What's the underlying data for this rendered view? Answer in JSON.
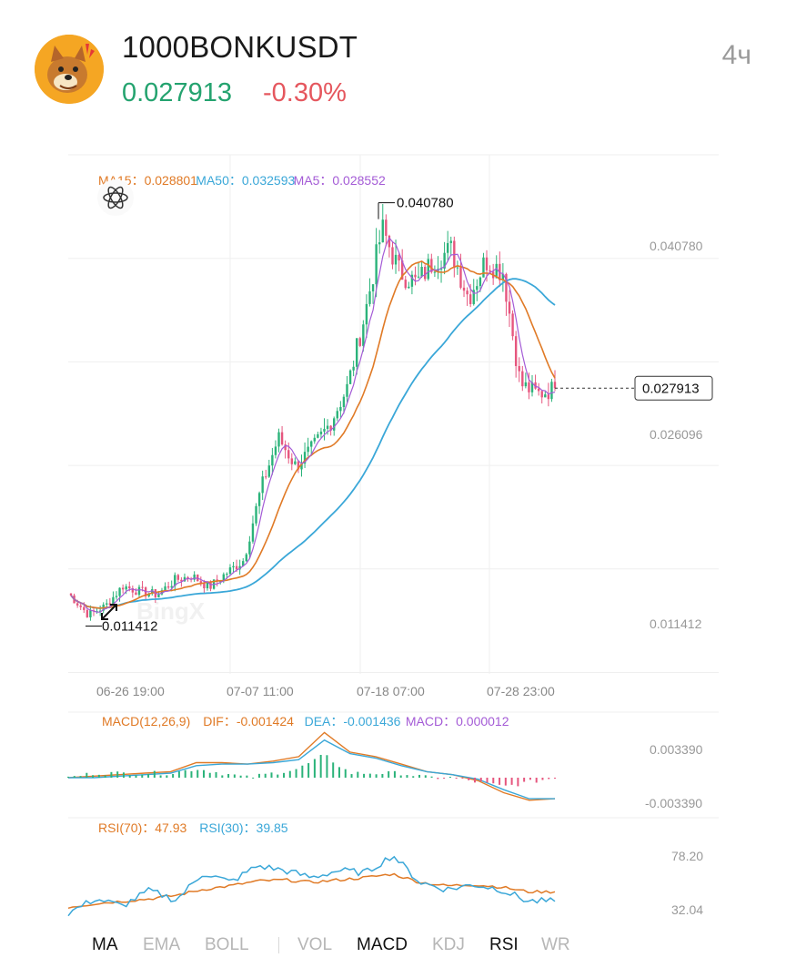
{
  "header": {
    "symbol": "1000BONKUSDT",
    "price": "0.027913",
    "change": "-0.30%",
    "interval": "4ч",
    "price_color": "#24a36f",
    "change_color": "#e5575e",
    "logo_icon": "bonk-dog-logo-icon"
  },
  "main_chart": {
    "legend": [
      {
        "label": "MA15：",
        "value": "0.028801",
        "color": "#e07a26"
      },
      {
        "label": "MA50：",
        "value": "0.032593",
        "color": "#3aa7d8"
      },
      {
        "label": "MA5：",
        "value": "0.028552",
        "color": "#a45bd6"
      }
    ],
    "right_axis_labels": [
      "0.040780",
      "0.026096",
      "0.011412"
    ],
    "high_label": "0.040780",
    "low_label": "0.011412",
    "last_price_label": "0.027913",
    "time_labels": [
      "06-26 19:00",
      "07-07 11:00",
      "07-18 07:00",
      "07-28 23:00"
    ],
    "watermark": "BingX"
  },
  "macd": {
    "legend": [
      {
        "label": "MACD(12,26,9)",
        "value": "",
        "color": "#e07a26"
      },
      {
        "label": "DIF：",
        "value": "-0.001424",
        "color": "#e07a26"
      },
      {
        "label": "DEA：",
        "value": "-0.001436",
        "color": "#3aa7d8"
      },
      {
        "label": "MACD：",
        "value": "0.000012",
        "color": "#a45bd6"
      }
    ],
    "axis_labels": [
      "0.003390",
      "-0.003390"
    ]
  },
  "rsi": {
    "legend": [
      {
        "label": "RSI(70)：",
        "value": "47.93",
        "color": "#e07a26"
      },
      {
        "label": "RSI(30)：",
        "value": "39.85",
        "color": "#3aa7d8"
      }
    ],
    "axis_labels": [
      "78.20",
      "32.04"
    ]
  },
  "tabs": [
    {
      "label": "MA",
      "active": true
    },
    {
      "label": "EMA",
      "active": false
    },
    {
      "label": "BOLL",
      "active": false
    },
    {
      "label": "VOL",
      "active": false
    },
    {
      "label": "MACD",
      "active": true
    },
    {
      "label": "KDJ",
      "active": false
    },
    {
      "label": "RSI",
      "active": true
    },
    {
      "label": "WR",
      "active": false
    }
  ],
  "chart_data": [
    {
      "type": "candlestick",
      "title": "1000BONKUSDT 4h",
      "x": [
        "06-26 19:00",
        "07-07 11:00",
        "07-18 07:00",
        "07-28 23:00"
      ],
      "ylim": [
        0.0081,
        0.0441
      ],
      "high": 0.04078,
      "low": 0.011412,
      "last": 0.027913,
      "close_path": [
        0.0135,
        0.0122,
        0.0128,
        0.0142,
        0.0138,
        0.0136,
        0.0146,
        0.0149,
        0.0141,
        0.0151,
        0.016,
        0.021,
        0.0245,
        0.0225,
        0.0238,
        0.0255,
        0.028,
        0.033,
        0.039,
        0.036,
        0.0352,
        0.0368,
        0.0375,
        0.0342,
        0.0368,
        0.036,
        0.0282,
        0.0275,
        0.0279
      ],
      "series": [
        {
          "name": "MA15",
          "last": 0.028801
        },
        {
          "name": "MA50",
          "last": 0.032593
        },
        {
          "name": "MA5",
          "last": 0.028552
        }
      ],
      "colors": {
        "up": "#2bb37a",
        "down": "#e6567e"
      }
    },
    {
      "type": "line",
      "title": "MACD(12,26,9)",
      "ylim": [
        -0.00339,
        0.00339
      ],
      "series": [
        {
          "name": "DIF",
          "values": [
            0.0,
            0.0001,
            0.0002,
            0.0003,
            0.0004,
            0.001,
            0.001,
            0.0009,
            0.0011,
            0.0014,
            0.003,
            0.0017,
            0.0014,
            0.0009,
            0.0004,
            0.0002,
            -0.0002,
            -0.001,
            -0.0015,
            -0.0014
          ]
        },
        {
          "name": "DEA",
          "values": [
            0.0,
            0.0,
            0.0001,
            0.0002,
            0.0003,
            0.0008,
            0.0009,
            0.0009,
            0.001,
            0.0012,
            0.0025,
            0.0016,
            0.0013,
            0.0008,
            0.0004,
            0.0002,
            -0.0001,
            -0.0008,
            -0.0014,
            -0.0014
          ]
        }
      ],
      "last": {
        "DIF": -0.001424,
        "DEA": -0.001436,
        "MACD": 1.2e-05
      }
    },
    {
      "type": "line",
      "title": "RSI",
      "ylim": [
        32.04,
        78.2
      ],
      "series": [
        {
          "name": "RSI(70)",
          "values": [
            35,
            38,
            40,
            42,
            45,
            50,
            53,
            57,
            58,
            56,
            58,
            60,
            63,
            56,
            53,
            54,
            52,
            48,
            47.93
          ]
        },
        {
          "name": "RSI(30)",
          "values": [
            30,
            42,
            36,
            49,
            41,
            64,
            56,
            70,
            66,
            60,
            66,
            64,
            79,
            56,
            50,
            54,
            50,
            40,
            39.85
          ]
        }
      ]
    }
  ]
}
